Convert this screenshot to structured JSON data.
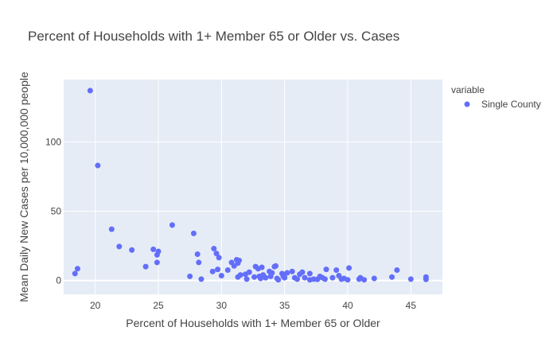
{
  "chart_data": {
    "type": "scatter",
    "title": "Percent of Households with 1+ Member 65 or Older vs. Cases",
    "xlabel": "Percent of Households with 1+ Member 65 or Older",
    "ylabel": "Mean Daily New Cases per 10,000,000 people",
    "xlim": [
      17.5,
      47.5
    ],
    "ylim": [
      -10,
      145
    ],
    "xticks": [
      20,
      25,
      30,
      35,
      40,
      45
    ],
    "yticks": [
      0,
      50,
      100
    ],
    "grid": true,
    "legend": {
      "title": "variable",
      "placement": "top-right"
    },
    "colors": {
      "plot_background": "#e5ecf6",
      "grid": "#ffffff",
      "marker": "#636efa"
    },
    "series": [
      {
        "name": "Single County",
        "points": [
          [
            19.6,
            137
          ],
          [
            20.2,
            83
          ],
          [
            21.3,
            37
          ],
          [
            21.9,
            24.5
          ],
          [
            22.9,
            22
          ],
          [
            24.0,
            10
          ],
          [
            24.6,
            22.5
          ],
          [
            24.9,
            18.5
          ],
          [
            25.0,
            21
          ],
          [
            24.9,
            13
          ],
          [
            26.1,
            40
          ],
          [
            27.5,
            3
          ],
          [
            27.8,
            34
          ],
          [
            28.1,
            19
          ],
          [
            28.2,
            13
          ],
          [
            28.4,
            1
          ],
          [
            29.3,
            6.5
          ],
          [
            29.4,
            23
          ],
          [
            29.6,
            19.5
          ],
          [
            29.7,
            8
          ],
          [
            29.8,
            16.5
          ],
          [
            30.0,
            3.5
          ],
          [
            30.5,
            7.5
          ],
          [
            30.8,
            13
          ],
          [
            31.0,
            10.5
          ],
          [
            31.2,
            15
          ],
          [
            31.3,
            12.5
          ],
          [
            31.4,
            14.5
          ],
          [
            31.3,
            2.5
          ],
          [
            31.5,
            4
          ],
          [
            31.9,
            4.5
          ],
          [
            32.0,
            1
          ],
          [
            32.2,
            6
          ],
          [
            32.6,
            2.5
          ],
          [
            32.7,
            10
          ],
          [
            32.9,
            8.5
          ],
          [
            33.0,
            3
          ],
          [
            33.1,
            1.5
          ],
          [
            33.2,
            9.5
          ],
          [
            33.3,
            4
          ],
          [
            33.5,
            2
          ],
          [
            33.8,
            6.5
          ],
          [
            33.9,
            3
          ],
          [
            34.0,
            5.5
          ],
          [
            34.2,
            10
          ],
          [
            34.3,
            10.5
          ],
          [
            34.4,
            1.5
          ],
          [
            34.5,
            0.5
          ],
          [
            34.8,
            5
          ],
          [
            34.9,
            3
          ],
          [
            35.0,
            2
          ],
          [
            35.2,
            5.5
          ],
          [
            35.6,
            6.5
          ],
          [
            35.8,
            2
          ],
          [
            36.0,
            1
          ],
          [
            36.2,
            4.5
          ],
          [
            36.4,
            6
          ],
          [
            36.6,
            2
          ],
          [
            37.0,
            5
          ],
          [
            37.0,
            0.5
          ],
          [
            37.3,
            1
          ],
          [
            37.6,
            0.8
          ],
          [
            37.8,
            3
          ],
          [
            38.0,
            2
          ],
          [
            38.2,
            1
          ],
          [
            38.3,
            8
          ],
          [
            38.8,
            2
          ],
          [
            39.1,
            7.5
          ],
          [
            39.3,
            3.5
          ],
          [
            39.5,
            1
          ],
          [
            39.7,
            1.5
          ],
          [
            40.0,
            0.5
          ],
          [
            40.1,
            9
          ],
          [
            40.9,
            1
          ],
          [
            41.0,
            2
          ],
          [
            41.3,
            0.5
          ],
          [
            42.1,
            1.5
          ],
          [
            43.5,
            2.5
          ],
          [
            43.9,
            7.5
          ],
          [
            45.0,
            1
          ],
          [
            46.2,
            0.8
          ],
          [
            46.2,
            2.5
          ],
          [
            18.4,
            5
          ],
          [
            18.6,
            8.5
          ]
        ]
      }
    ]
  }
}
